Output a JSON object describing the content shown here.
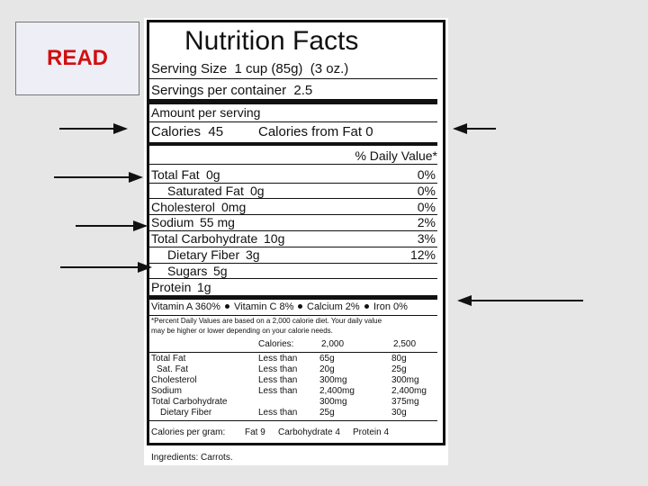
{
  "read_label": "READ",
  "label": {
    "title": "Nutrition Facts",
    "serving_size": "Serving Size  1 cup (85g)  (3 oz.)",
    "servings_per_container": "Servings per container  2.5",
    "amount_per_serving": "Amount per serving",
    "calories": "Calories  45",
    "calories_from_fat": "Calories from Fat 0",
    "daily_value_header": "% Daily Value*",
    "nutrients": [
      {
        "name": "Total Fat",
        "amount": "0g",
        "dv": "0%"
      },
      {
        "name": "Saturated Fat",
        "amount": "0g",
        "dv": "0%"
      },
      {
        "name": "Cholesterol",
        "amount": "0mg",
        "dv": "0%"
      },
      {
        "name": "Sodium",
        "amount": "55 mg",
        "dv": "2%"
      },
      {
        "name": "Total Carbohydrate",
        "amount": "10g",
        "dv": "3%"
      },
      {
        "name": "Dietary Fiber",
        "amount": "3g",
        "dv": "12%"
      },
      {
        "name": "Sugars",
        "amount": "5g"
      },
      {
        "name": "Protein",
        "amount": "1g"
      }
    ],
    "vitamins": [
      "Vitamin A 360%",
      "Vitamin C 8%",
      "Calcium 2%",
      "Iron 0%"
    ],
    "footnote": [
      "*Percent Daily Values are based on a 2,000 calorie diet. Your daily value",
      "may be higher or lower depending on your calorie needs."
    ],
    "dv_table": {
      "header": {
        "label": "Calories:",
        "values": [
          "2,000",
          "2,500"
        ]
      },
      "rows": [
        [
          "Total Fat",
          "Less than",
          "65g",
          "80g"
        ],
        [
          "Sat. Fat",
          "Less than",
          "20g",
          "25g"
        ],
        [
          "Cholesterol",
          "Less than",
          "300mg",
          "300mg"
        ],
        [
          "Sodium",
          "Less than",
          "2,400mg",
          "2,400mg"
        ],
        [
          "Total Carbohydrate",
          "",
          "300mg",
          "375mg"
        ],
        [
          "Dietary Fiber",
          "Less than",
          "25g",
          "30g"
        ]
      ]
    },
    "calories_per_gram": {
      "label": "Calories per gram:",
      "items": [
        "Fat 9",
        "Carbohydrate 4",
        "Protein 4"
      ]
    },
    "ingredients": "Ingredients: Carrots."
  }
}
